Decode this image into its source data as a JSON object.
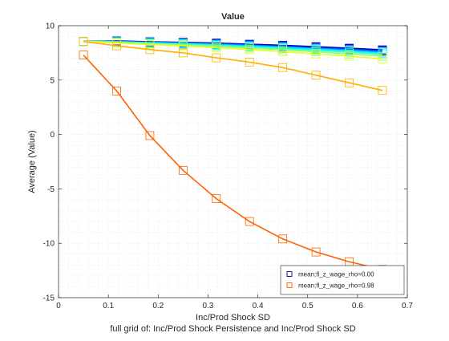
{
  "chart_data": {
    "type": "line",
    "title": "Value",
    "xlabel": "Inc/Prod Shock SD",
    "ylabel": "Average (Value)",
    "footnote": "full grid of: Inc/Prod Shock Persistence and Inc/Prod Shock SD",
    "xlim": [
      0,
      0.7
    ],
    "ylim": [
      -15,
      10
    ],
    "xticks": [
      "0",
      "0.1",
      "0.2",
      "0.3",
      "0.4",
      "0.5",
      "0.6",
      "0.7"
    ],
    "yticks": [
      "-15",
      "-10",
      "-5",
      "0",
      "5",
      "10"
    ],
    "grid": "minor dotted",
    "legend_position": "bottom-right",
    "x": [
      0.05,
      0.1167,
      0.1833,
      0.25,
      0.3167,
      0.3833,
      0.45,
      0.5167,
      0.5833,
      0.65
    ],
    "series": [
      {
        "name": "mean;fl_z_wage_rho=0.00",
        "in_legend": true,
        "color": "#00008f",
        "values": [
          8.55,
          8.6,
          8.52,
          8.47,
          8.4,
          8.3,
          8.2,
          8.07,
          7.93,
          7.78
        ]
      },
      {
        "color": "#0000df",
        "values": [
          8.55,
          8.58,
          8.5,
          8.45,
          8.37,
          8.27,
          8.15,
          8.02,
          7.88,
          7.72
        ]
      },
      {
        "color": "#0050ff",
        "values": [
          8.55,
          8.57,
          8.48,
          8.42,
          8.33,
          8.22,
          8.1,
          7.97,
          7.82,
          7.66
        ]
      },
      {
        "color": "#00a0ff",
        "values": [
          8.55,
          8.55,
          8.46,
          8.39,
          8.29,
          8.18,
          8.05,
          7.91,
          7.76,
          7.58
        ]
      },
      {
        "color": "#00f0ff",
        "values": [
          8.55,
          8.53,
          8.43,
          8.35,
          8.24,
          8.12,
          7.98,
          7.83,
          7.67,
          7.48
        ]
      },
      {
        "color": "#40ffbf",
        "values": [
          8.55,
          8.5,
          8.39,
          8.3,
          8.18,
          8.04,
          7.89,
          7.72,
          7.55,
          7.35
        ]
      },
      {
        "color": "#90ff6f",
        "values": [
          8.55,
          8.47,
          8.34,
          8.23,
          8.1,
          7.94,
          7.78,
          7.6,
          7.4,
          7.18
        ]
      },
      {
        "color": "#e0ff1f",
        "values": [
          8.55,
          8.42,
          8.27,
          8.14,
          7.98,
          7.8,
          7.61,
          7.41,
          7.19,
          6.95
        ]
      },
      {
        "color": "#ffb000",
        "values": [
          8.55,
          8.15,
          7.8,
          7.5,
          7.05,
          6.65,
          6.15,
          5.45,
          4.75,
          4.05
        ]
      },
      {
        "name": "mean;fl_z_wage_rho=0.98",
        "in_legend": true,
        "color": "#ff6000",
        "values": [
          7.3,
          4.0,
          -0.1,
          -3.3,
          -5.9,
          -8.0,
          -9.6,
          -10.8,
          -11.7,
          -12.4
        ]
      }
    ]
  }
}
